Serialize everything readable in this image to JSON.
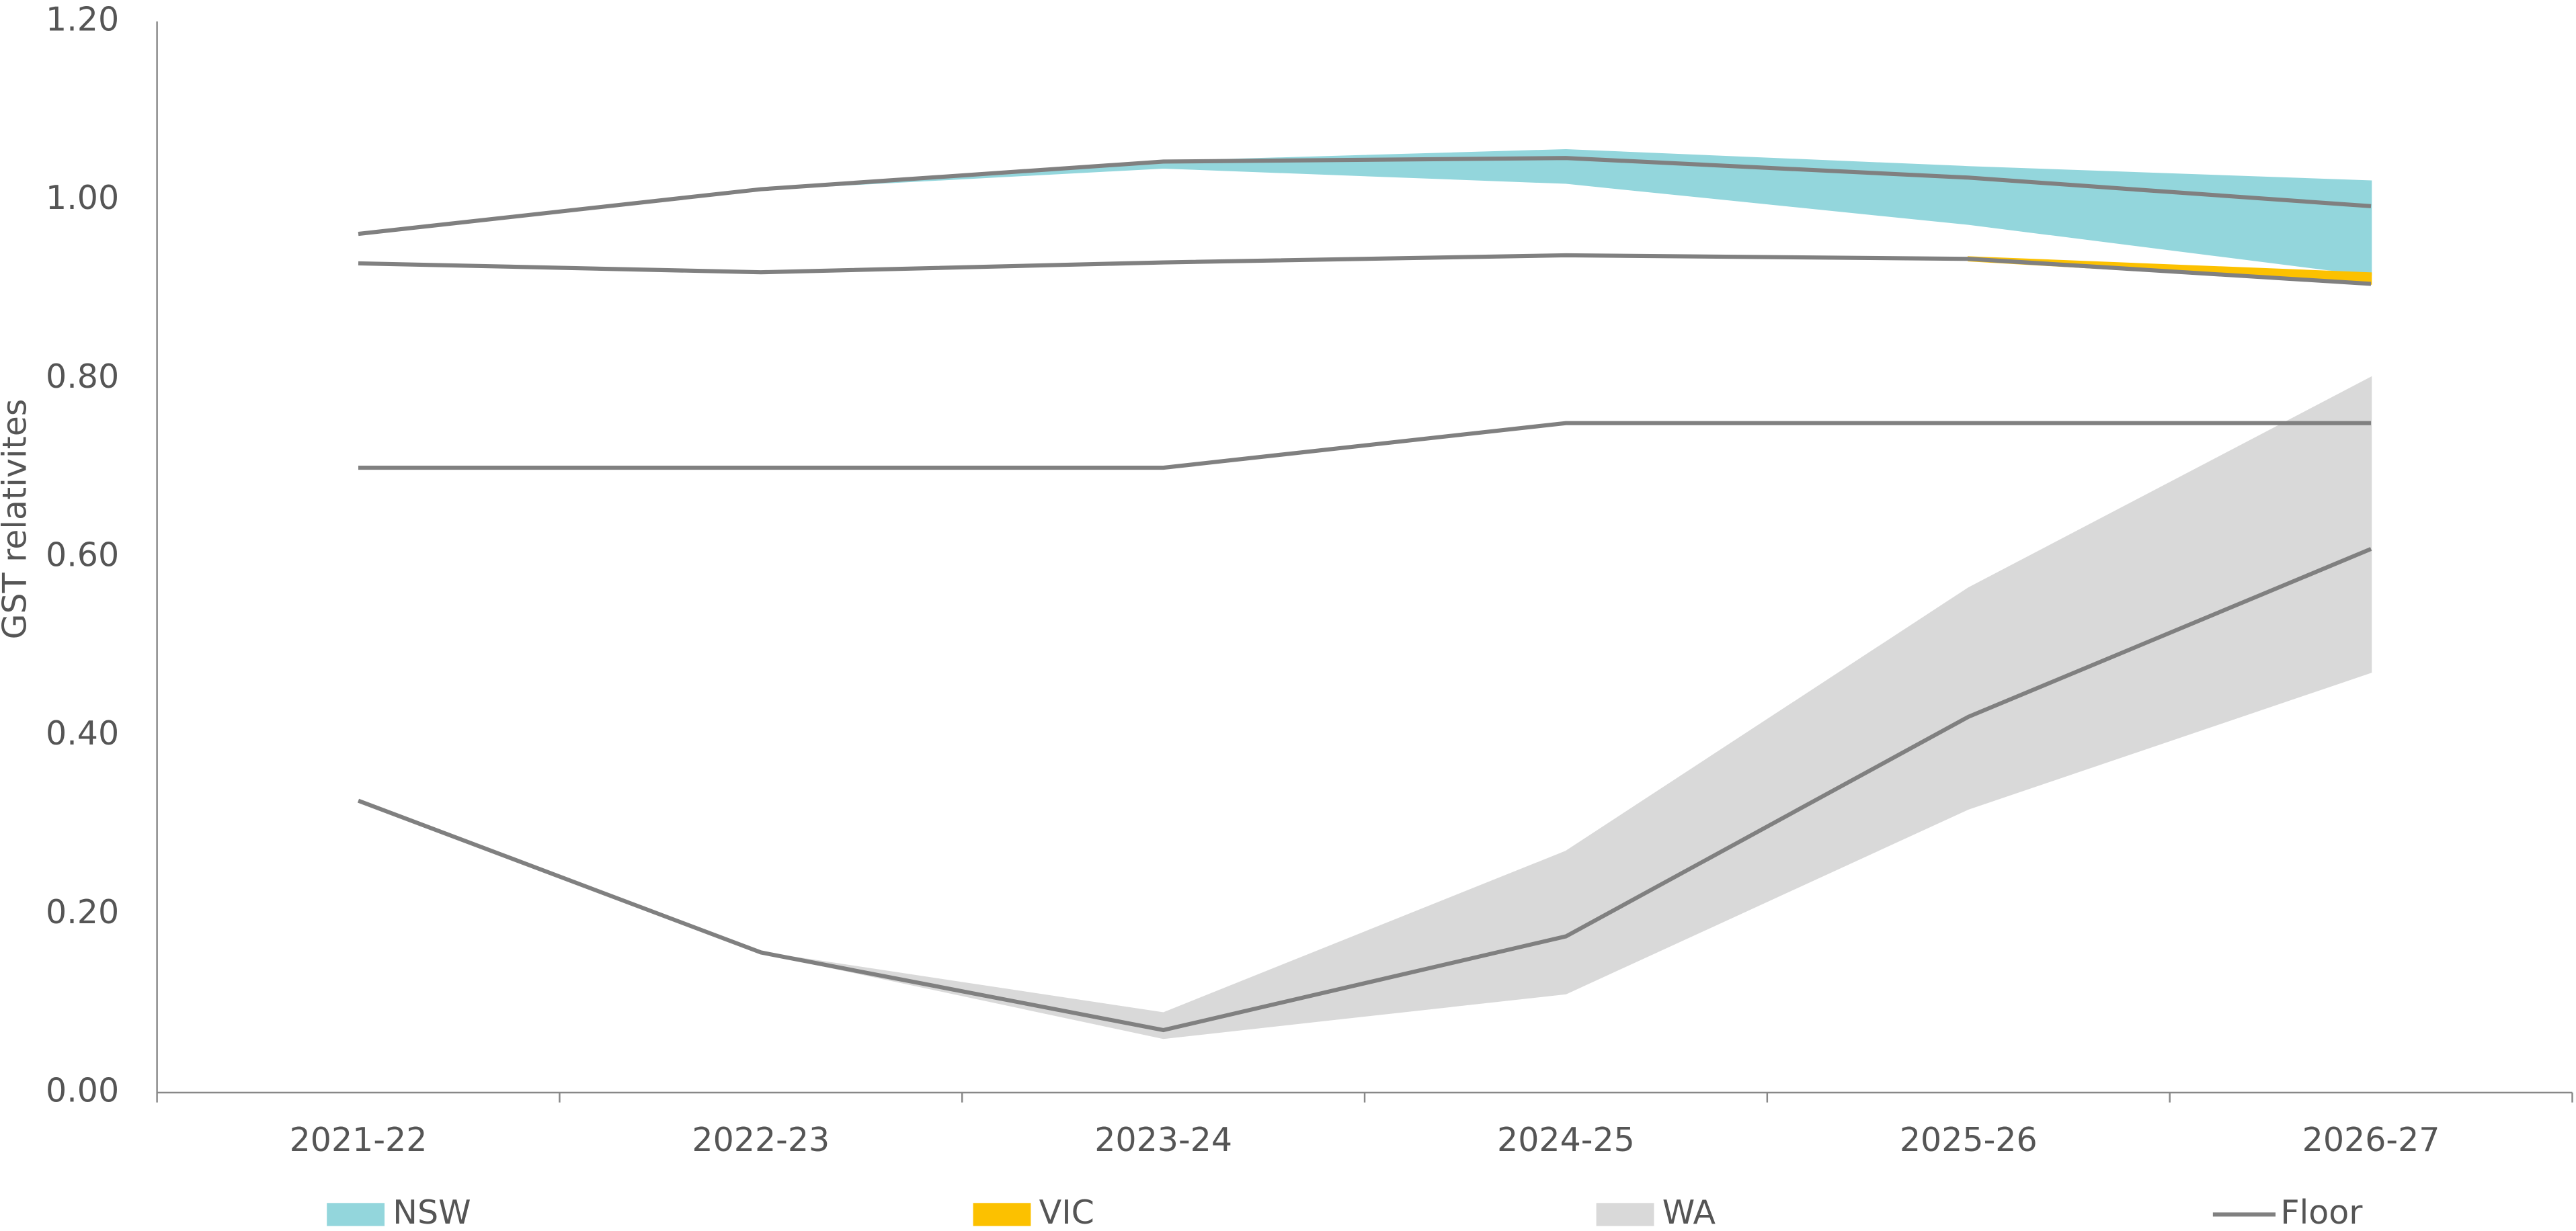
{
  "chart_data": {
    "type": "area_range",
    "y_label": "GST relativites",
    "categories": [
      "2021-22",
      "2022-23",
      "2023-24",
      "2024-25",
      "2025-26",
      "2026-27"
    ],
    "ylim": [
      0,
      1.2
    ],
    "yticks": [
      {
        "value": 0,
        "label": "0.00"
      },
      {
        "value": 0.2,
        "label": "0.20"
      },
      {
        "value": 0.4,
        "label": "0.40"
      },
      {
        "value": 0.6,
        "label": "0.60"
      },
      {
        "value": 0.8,
        "label": "0.80"
      },
      {
        "value": 1,
        "label": "1.00"
      },
      {
        "value": 1.2,
        "label": "1.20"
      }
    ],
    "series": [
      {
        "name": "NSW",
        "color": "#93d6dc",
        "low": [
          null,
          1.012,
          1.036,
          1.019,
          0.973,
          0.916
        ],
        "high": [
          null,
          1.012,
          1.043,
          1.056,
          1.037,
          1.021
        ]
      },
      {
        "name": "VIC",
        "color": "#fcc100",
        "low": [
          null,
          null,
          null,
          null,
          0.932,
          0.906
        ],
        "high": [
          null,
          null,
          null,
          null,
          0.936,
          0.918
        ]
      },
      {
        "name": "WA",
        "color": "#d9d9d9",
        "low": [
          null,
          0.157,
          0.061,
          0.111,
          0.318,
          0.471
        ],
        "high": [
          null,
          0.157,
          0.089,
          0.27,
          0.565,
          0.801
        ]
      },
      {
        "name": "Floor",
        "color": "#808080",
        "lines": [
          [
            0.962,
            1.012,
            1.043,
            1.047,
            1.025,
            0.993
          ],
          [
            0.929,
            0.919,
            0.93,
            0.938,
            0.934,
            0.906
          ],
          [
            0.7,
            0.7,
            0.7,
            0.75,
            0.75,
            0.75
          ],
          [
            0.327,
            0.157,
            0.07,
            0.175,
            0.421,
            0.609
          ]
        ]
      }
    ]
  }
}
